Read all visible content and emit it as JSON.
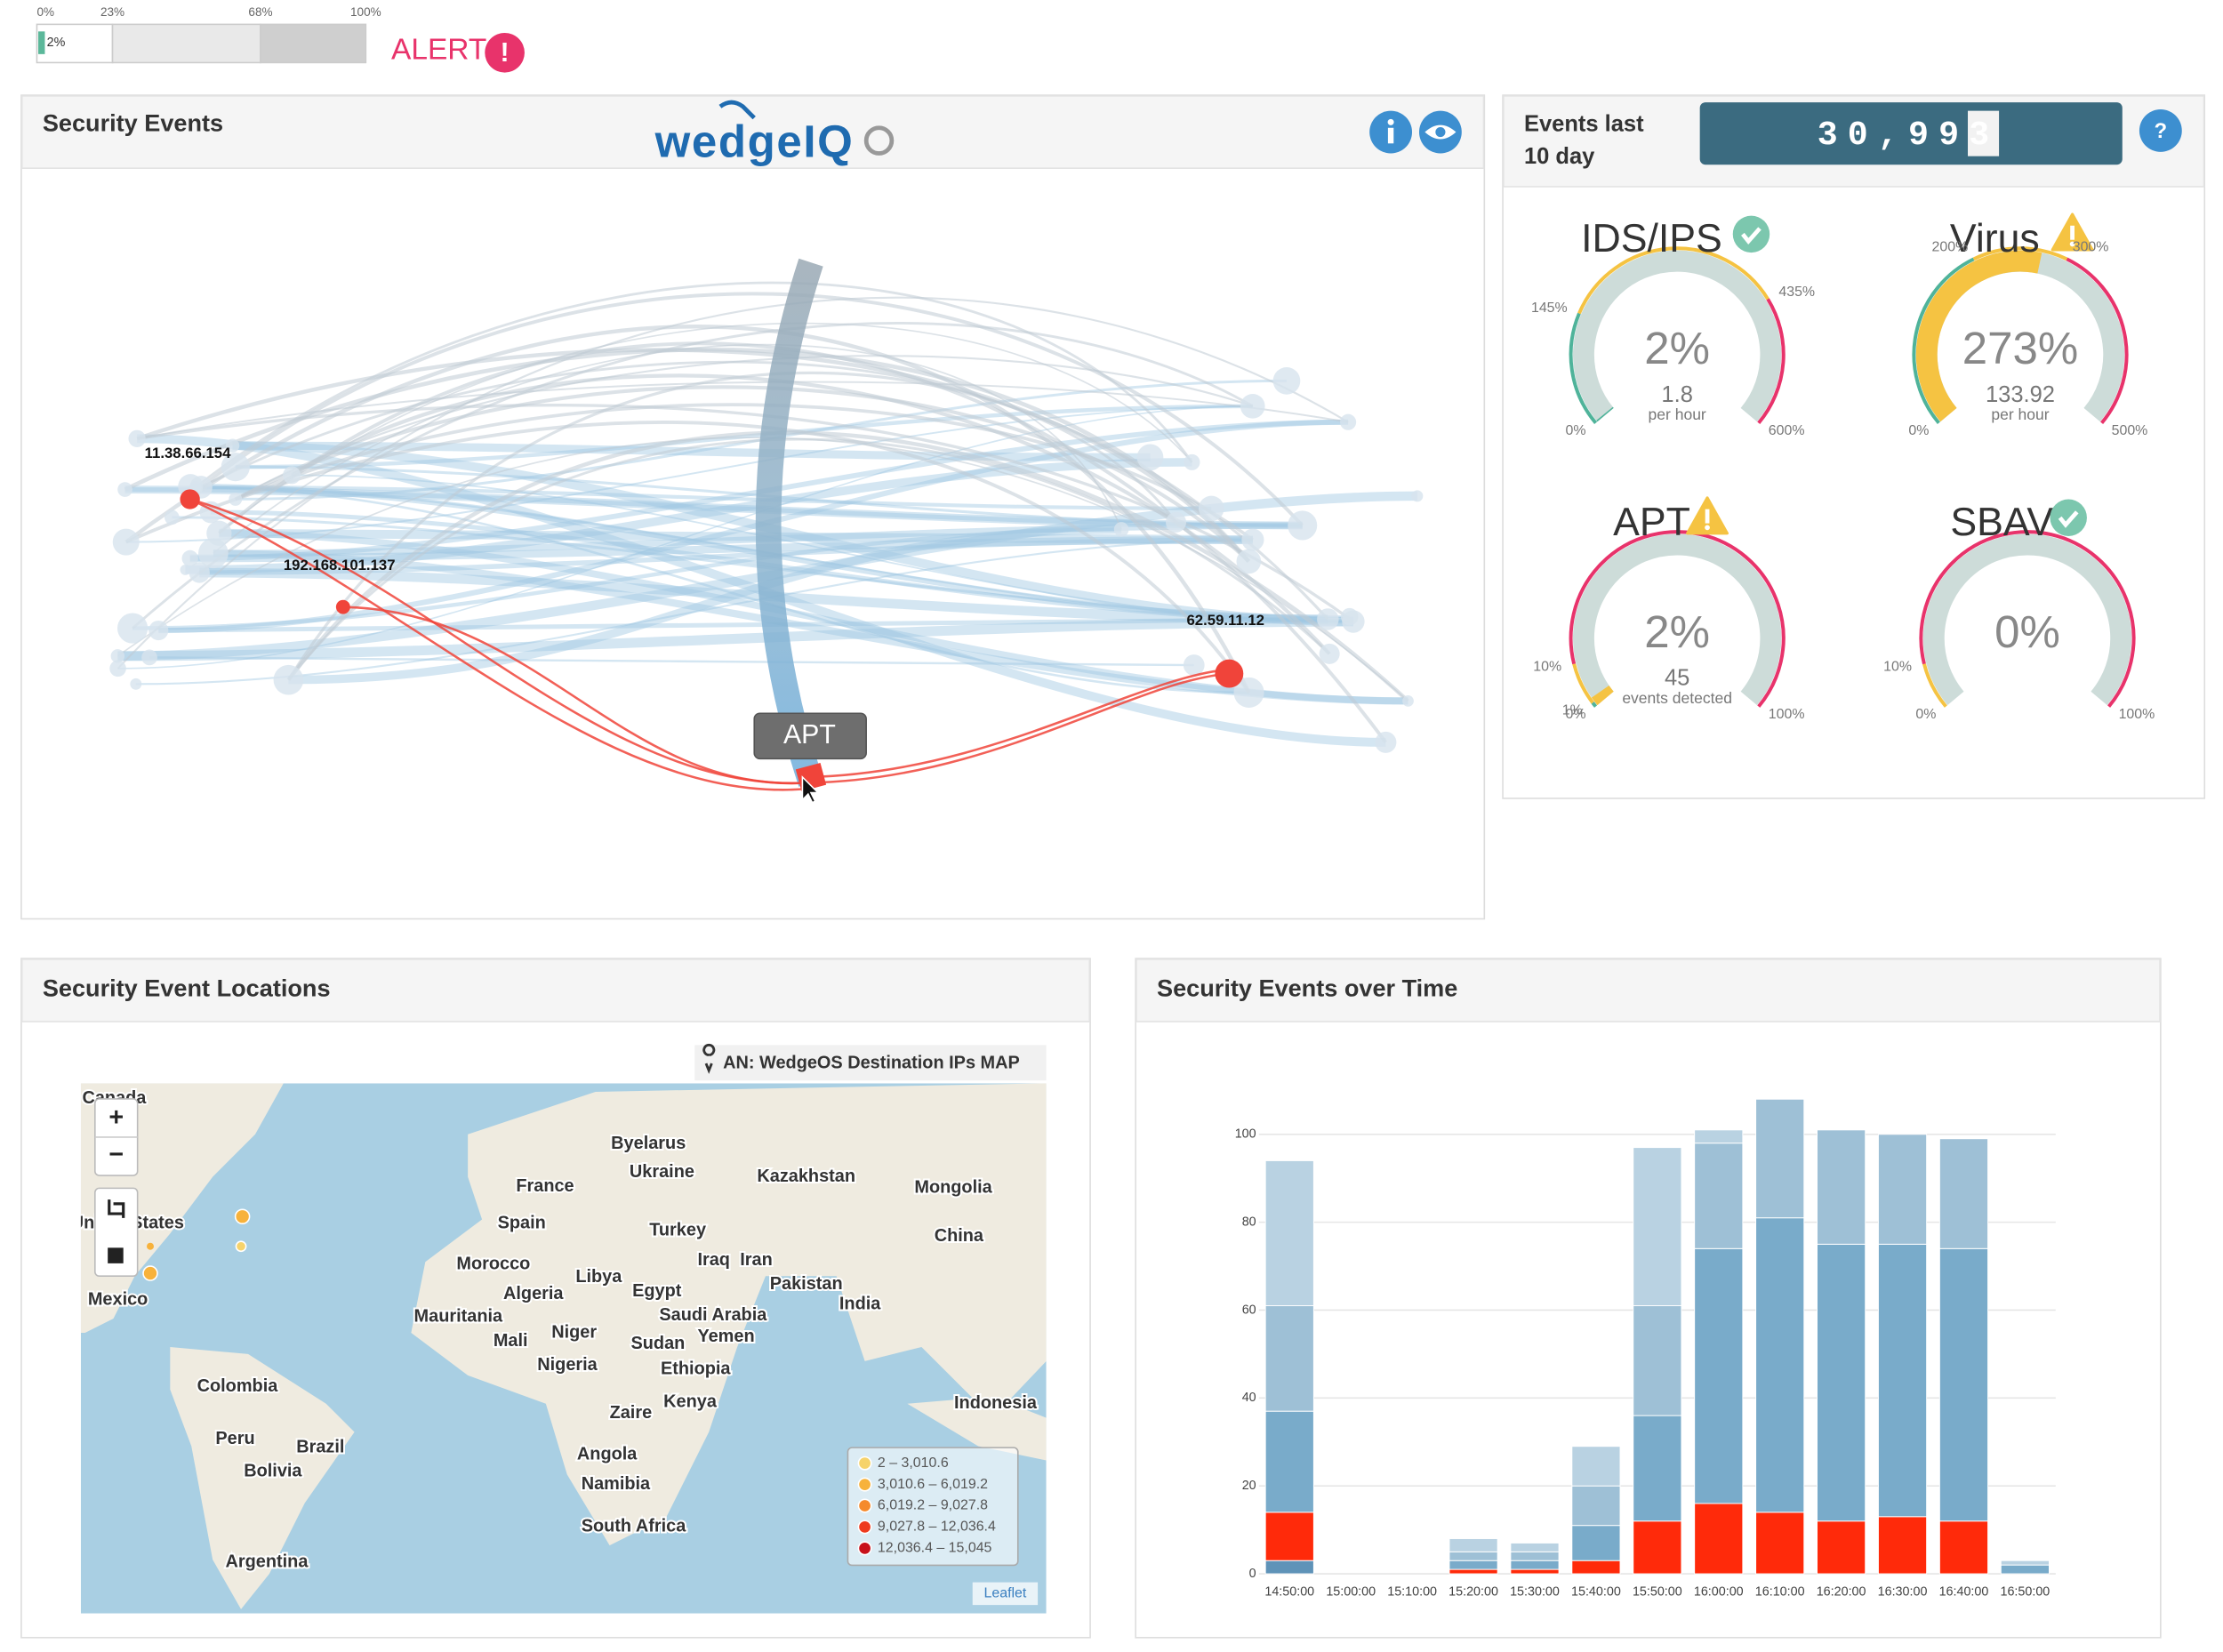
{
  "alert_bar": {
    "ticks": [
      {
        "value": 0,
        "label": "0%"
      },
      {
        "value": 23,
        "label": "23%"
      },
      {
        "value": 68,
        "label": "68%"
      },
      {
        "value": 100,
        "label": "100%"
      }
    ],
    "value": {
      "value": 2,
      "label": "2%"
    },
    "alert": "ALERT",
    "alert_icon": "!"
  },
  "security_events": {
    "title": "Security Events",
    "logo": "wedgeIQ",
    "nodes": [
      "11.38.66.154",
      "192.168.101.137",
      "62.59.11.12"
    ],
    "tooltip": "APT"
  },
  "events_counter": {
    "title": [
      "Events last",
      "10 day"
    ],
    "count": {
      "value": 30993,
      "label": "30,993"
    },
    "help": "?"
  },
  "gauge_colors": [
    "#4fb39a",
    "#f5c342",
    "#e8336b"
  ],
  "gauges": [
    {
      "title": "IDS/IPS",
      "status": "ok",
      "value": {
        "value": 2,
        "label": "2%"
      },
      "detail": 1.8,
      "unit": "per hour",
      "scale": [
        {
          "value": 0,
          "label": "0%"
        },
        {
          "value": 600,
          "label": "600%"
        }
      ],
      "thresholds": [
        {
          "value": 145,
          "label": "145%"
        },
        {
          "value": 435,
          "label": "435%"
        }
      ]
    },
    {
      "title": "Virus",
      "status": "warning",
      "value": {
        "value": 273,
        "label": "273%"
      },
      "detail": 133.92,
      "unit": "per hour",
      "scale": [
        {
          "value": 0,
          "label": "0%"
        },
        {
          "value": 500,
          "label": "500%"
        }
      ],
      "thresholds": [
        {
          "value": 200,
          "label": "200%"
        },
        {
          "value": 300,
          "label": "300%"
        }
      ]
    },
    {
      "title": "APT",
      "status": "warning",
      "value": {
        "value": 2,
        "label": "2%"
      },
      "detail": 45,
      "unit": "events detected",
      "scale": [
        {
          "value": 0,
          "label": "0%"
        },
        {
          "value": 100,
          "label": "100%"
        }
      ],
      "thresholds": [
        {
          "value": 1,
          "label": "1%"
        },
        {
          "value": 10,
          "label": "10%"
        }
      ]
    },
    {
      "title": "SBAV",
      "status": "ok",
      "value": {
        "value": 0,
        "label": "0%"
      },
      "scale": [
        {
          "value": 0,
          "label": "0%"
        },
        {
          "value": 100,
          "label": "100%"
        }
      ],
      "thresholds": [
        {
          "value": 10,
          "label": "10%"
        }
      ]
    }
  ],
  "map": {
    "title": "Security Event Locations",
    "caption": "AN: WedgeOS Destination IPs MAP",
    "labels": [
      "Canada",
      "United States",
      "Mexico",
      "Colombia",
      "Peru",
      "Brazil",
      "Bolivia",
      "Argentina",
      "France",
      "Spain",
      "Morocco",
      "Algeria",
      "Mauritania",
      "Mali",
      "Niger",
      "Nigeria",
      "Libya",
      "Egypt",
      "Sudan",
      "Ethiopia",
      "Zaire",
      "Kenya",
      "Angola",
      "Namibia",
      "South Africa",
      "Byelarus",
      "Ukraine",
      "Turkey",
      "Iraq",
      "Iran",
      "Saudi Arabia",
      "Yemen",
      "Kazakhstan",
      "Pakistan",
      "India",
      "Mongolia",
      "China",
      "Indonesia"
    ],
    "zoom_in": "+",
    "zoom_out": "−",
    "legend": [
      {
        "label": "2 – 3,010.6",
        "color": "#f6d36b"
      },
      {
        "label": "3,010.6 – 6,019.2",
        "color": "#f7b23b"
      },
      {
        "label": "6,019.2 – 9,027.8",
        "color": "#f58a2c"
      },
      {
        "label": "9,027.8 – 12,036.4",
        "color": "#ee3b1f"
      },
      {
        "label": "12,036.4 – 15,045",
        "color": "#c8101a"
      }
    ],
    "attribution": "Leaflet"
  },
  "chart_data": {
    "type": "bar",
    "stacked": true,
    "title": "Security Events over Time",
    "categories": [
      "14:50:00",
      "15:00:00",
      "15:10:00",
      "15:20:00",
      "15:30:00",
      "15:40:00",
      "15:50:00",
      "16:00:00",
      "16:10:00",
      "16:20:00",
      "16:30:00",
      "16:40:00",
      "16:50:00"
    ],
    "series": [
      {
        "color": "#5f93b8",
        "values": [
          3,
          0,
          0,
          0,
          0,
          0,
          0,
          0,
          0,
          0,
          0,
          0,
          0
        ]
      },
      {
        "color": "#ff2a0a",
        "values": [
          11,
          0,
          0,
          1,
          1,
          3,
          12,
          16,
          14,
          12,
          13,
          12,
          0
        ]
      },
      {
        "color": "#79abca",
        "values": [
          23,
          0,
          0,
          2,
          2,
          8,
          24,
          58,
          67,
          63,
          62,
          62,
          2
        ]
      },
      {
        "color": "#9ec0d6",
        "values": [
          24,
          0,
          0,
          2,
          2,
          9,
          25,
          24,
          27,
          26,
          25,
          25,
          0
        ]
      },
      {
        "color": "#b9d2e2",
        "values": [
          33,
          0,
          0,
          3,
          2,
          9,
          36,
          3,
          0,
          0,
          0,
          0,
          1
        ]
      }
    ],
    "ylim": [
      0,
      110
    ],
    "yticks": [
      0,
      20,
      40,
      60,
      80,
      100
    ],
    "grid": true
  }
}
